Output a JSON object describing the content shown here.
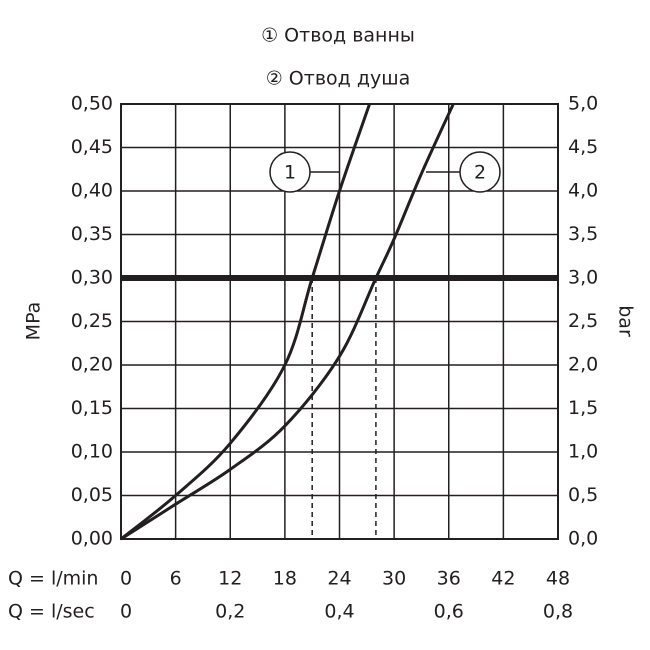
{
  "chart_data": {
    "type": "line",
    "title": "① Отвод ванны",
    "subtitle": "② Отвод душа",
    "xlabel": "Q = l/min",
    "x2label": "Q = l/sec",
    "ylabel": "MPa",
    "y2label": "bar",
    "xlim": [
      0,
      48
    ],
    "xticks": [
      0,
      6,
      12,
      18,
      24,
      30,
      36,
      42,
      48
    ],
    "x2lim": [
      0,
      0.8
    ],
    "x2ticks": [
      0,
      {
        "value": 0.2,
        "label": "0,2"
      },
      {
        "value": 0.4,
        "label": "0,4"
      },
      {
        "value": 0.6,
        "label": "0,6"
      },
      {
        "value": 0.8,
        "label": "0,8"
      }
    ],
    "ylim": [
      0,
      0.5
    ],
    "yticks": [
      {
        "value": 0,
        "label": "0,00"
      },
      {
        "value": 0.05,
        "label": "0,05"
      },
      {
        "value": 0.1,
        "label": "0,10"
      },
      {
        "value": 0.15,
        "label": "0,15"
      },
      {
        "value": 0.2,
        "label": "0,20"
      },
      {
        "value": 0.25,
        "label": "0,25"
      },
      {
        "value": 0.3,
        "label": "0,30"
      },
      {
        "value": 0.35,
        "label": "0,35"
      },
      {
        "value": 0.4,
        "label": "0,40"
      },
      {
        "value": 0.45,
        "label": "0,45"
      },
      {
        "value": 0.5,
        "label": "0,50"
      }
    ],
    "y2lim": [
      0,
      5
    ],
    "y2ticks": [
      {
        "value": 0,
        "label": "0,0"
      },
      {
        "value": 0.5,
        "label": "0,5"
      },
      {
        "value": 1,
        "label": "1,0"
      },
      {
        "value": 1.5,
        "label": "1,5"
      },
      {
        "value": 2,
        "label": "2,0"
      },
      {
        "value": 2.5,
        "label": "2,5"
      },
      {
        "value": 3,
        "label": "3,0"
      },
      {
        "value": 3.5,
        "label": "3,5"
      },
      {
        "value": 4,
        "label": "4,0"
      },
      {
        "value": 4.5,
        "label": "4,5"
      },
      {
        "value": 5,
        "label": "5,0"
      }
    ],
    "grid": true,
    "reference_line": 0.3,
    "drop_lines": [
      {
        "x": 21,
        "y": 0.3
      },
      {
        "x": 28,
        "y": 0.3
      }
    ],
    "series": [
      {
        "name": "1",
        "color": "#231f20",
        "x": [
          0,
          6,
          12,
          18,
          21,
          24,
          27.3
        ],
        "values": [
          0,
          0.05,
          0.11,
          0.2,
          0.3,
          0.4,
          0.5
        ]
      },
      {
        "name": "2",
        "color": "#231f20",
        "x": [
          0,
          6,
          12,
          18,
          24,
          28,
          30,
          33,
          36.5
        ],
        "values": [
          0,
          0.04,
          0.08,
          0.13,
          0.21,
          0.3,
          0.345,
          0.42,
          0.5
        ]
      }
    ]
  }
}
